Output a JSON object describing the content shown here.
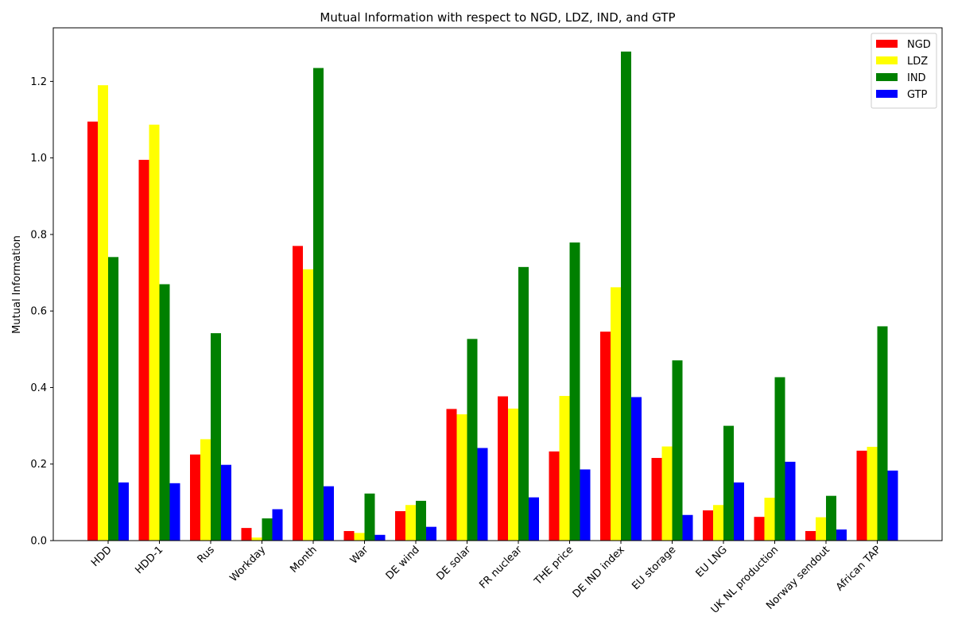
{
  "chart_data": {
    "type": "bar",
    "title": "Mutual Information with respect to NGD, LDZ, IND, and GTP",
    "xlabel": "",
    "ylabel": "Mutual Information",
    "ylim": [
      0,
      1.34
    ],
    "yticks": [
      "0.0",
      "0.2",
      "0.4",
      "0.6",
      "0.8",
      "1.0",
      "1.2"
    ],
    "grid": false,
    "legend_position": "top-right",
    "categories": [
      "HDD",
      "HDD-1",
      "Rus",
      "Workday",
      "Month",
      "War",
      "DE wind",
      "DE solar",
      "FR nuclear",
      "THE price",
      "DE IND index",
      "EU storage",
      "EU LNG",
      "UK NL production",
      "Norway sendout",
      "African TAP"
    ],
    "series": [
      {
        "name": "NGD",
        "color": "#ff0000",
        "values": [
          1.095,
          0.995,
          0.225,
          0.033,
          0.77,
          0.025,
          0.077,
          0.344,
          0.377,
          0.233,
          0.546,
          0.216,
          0.079,
          0.062,
          0.025,
          0.235
        ]
      },
      {
        "name": "LDZ",
        "color": "#ffff00",
        "values": [
          1.19,
          1.087,
          0.265,
          0.008,
          0.709,
          0.02,
          0.093,
          0.33,
          0.345,
          0.378,
          0.662,
          0.246,
          0.093,
          0.112,
          0.061,
          0.245
        ]
      },
      {
        "name": "IND",
        "color": "#008000",
        "values": [
          0.741,
          0.67,
          0.542,
          0.058,
          1.235,
          0.123,
          0.104,
          0.527,
          0.715,
          0.779,
          1.278,
          0.471,
          0.3,
          0.427,
          0.117,
          0.56
        ]
      },
      {
        "name": "GTP",
        "color": "#0000ff",
        "values": [
          0.152,
          0.15,
          0.198,
          0.082,
          0.142,
          0.015,
          0.036,
          0.242,
          0.113,
          0.186,
          0.375,
          0.067,
          0.152,
          0.206,
          0.029,
          0.183
        ]
      }
    ]
  }
}
